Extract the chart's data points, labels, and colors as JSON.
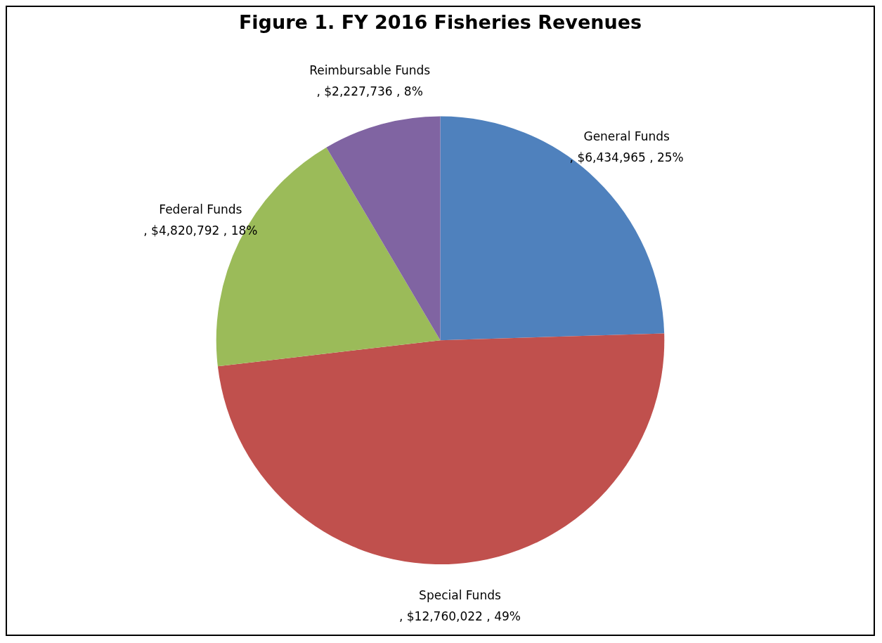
{
  "chart_data": {
    "type": "pie",
    "title": "Figure 1. FY 2016 Fisheries Revenues",
    "categories": [
      "General Funds",
      "Special Funds",
      "Federal Funds",
      "Reimbursable Funds"
    ],
    "values": [
      6434965,
      12760022,
      4820792,
      2227736
    ],
    "colors": [
      "#4f81bd",
      "#c0504d",
      "#9bbb59",
      "#8064a2"
    ],
    "value_labels": [
      ", $6,434,965 , 25%",
      ", $12,760,022 , 49%",
      ", $4,820,792 , 18%",
      ", $2,227,736 , 8%"
    ],
    "legend": false
  }
}
